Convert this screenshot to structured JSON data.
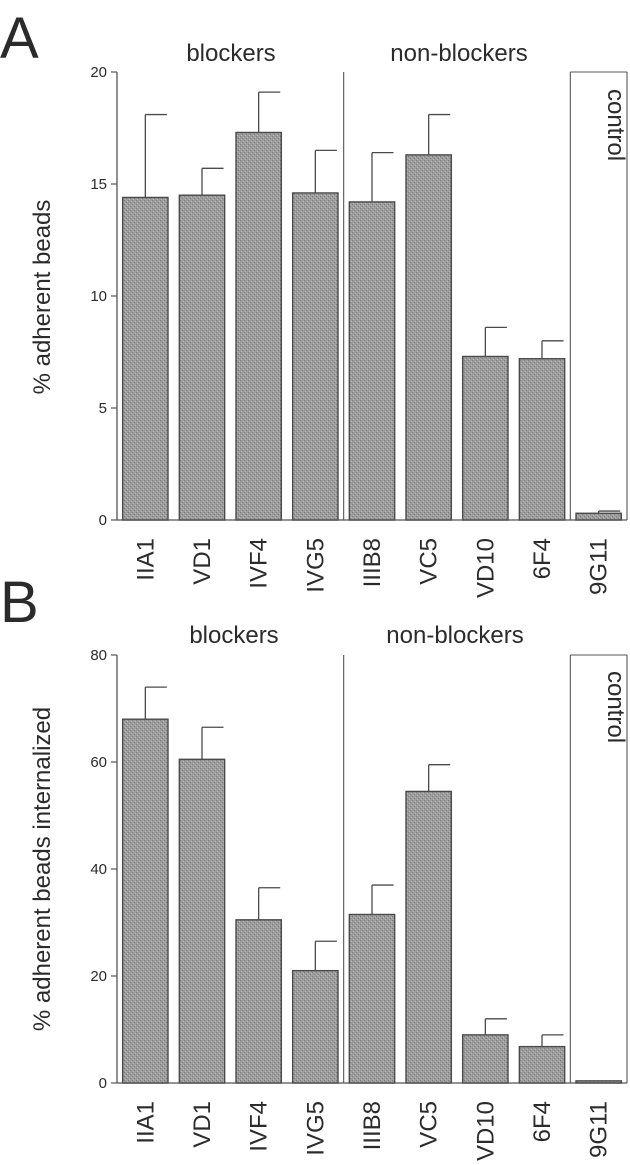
{
  "chart_data": [
    {
      "type": "bar",
      "panel": "A",
      "ylabel": "% adherent beads",
      "ylim": [
        0,
        20
      ],
      "yticks": [
        0,
        5,
        10,
        15,
        20
      ],
      "groups": [
        {
          "label": "blockers",
          "categories": [
            "IIA1",
            "VD1",
            "IVF4",
            "IVG5"
          ]
        },
        {
          "label": "non-blockers",
          "categories": [
            "IIIB8",
            "VC5",
            "VD10",
            "6F4"
          ]
        },
        {
          "label": "control",
          "categories": [
            "9G11"
          ]
        }
      ],
      "categories": [
        "IIA1",
        "VD1",
        "IVF4",
        "IVG5",
        "IIIB8",
        "VC5",
        "VD10",
        "6F4",
        "9G11"
      ],
      "values": [
        14.4,
        14.5,
        17.3,
        14.6,
        14.2,
        16.3,
        7.3,
        7.2,
        0.3
      ],
      "errors": [
        3.7,
        1.2,
        1.8,
        1.9,
        2.2,
        1.8,
        1.3,
        0.8,
        0.1
      ]
    },
    {
      "type": "bar",
      "panel": "B",
      "ylabel": "% adherent beads internalized",
      "ylim": [
        0,
        80
      ],
      "yticks": [
        0,
        20,
        40,
        60,
        80
      ],
      "groups": [
        {
          "label": "blockers",
          "categories": [
            "IIA1",
            "VD1",
            "IVF4",
            "IVG5"
          ]
        },
        {
          "label": "non-blockers",
          "categories": [
            "IIIB8",
            "VC5",
            "VD10",
            "6F4"
          ]
        },
        {
          "label": "control",
          "categories": [
            "9G11"
          ]
        }
      ],
      "categories": [
        "IIA1",
        "VD1",
        "IVF4",
        "IVG5",
        "IIIB8",
        "VC5",
        "VD10",
        "6F4",
        "9G11"
      ],
      "values": [
        68,
        60.5,
        30.5,
        21,
        31.5,
        54.5,
        9,
        6.8,
        0.4
      ],
      "errors": [
        6,
        6,
        6,
        5.5,
        5.5,
        5,
        3,
        2.2,
        0
      ]
    }
  ]
}
